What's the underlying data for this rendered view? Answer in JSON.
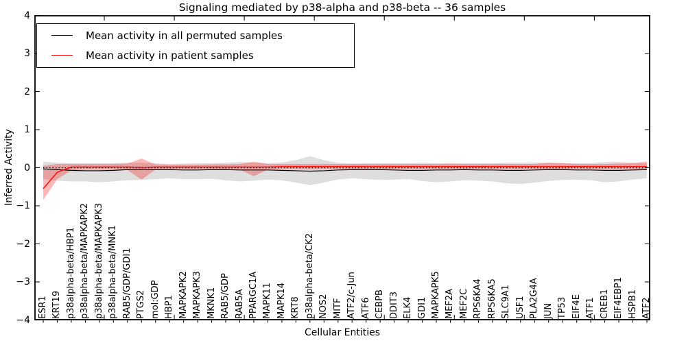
{
  "figure": {
    "title": "Signaling mediated by p38-alpha and p38-beta -- 36 samples",
    "xlabel": "Cellular Entities",
    "ylabel": "Inferred Activity"
  },
  "legend": {
    "entries": [
      {
        "label": "Mean activity in all permuted samples",
        "color": "#000000"
      },
      {
        "label": "Mean activity in patient samples",
        "color": "#ff0000"
      }
    ]
  },
  "chart_data": {
    "type": "line",
    "title": "Signaling mediated by p38-alpha and p38-beta -- 36 samples",
    "xlabel": "Cellular Entities",
    "ylabel": "Inferred Activity",
    "ylim": [
      -4,
      4
    ],
    "yticks": [
      4,
      3,
      2,
      1,
      0,
      -1,
      -2,
      -3,
      -4
    ],
    "ytick_labels": [
      "4",
      "3",
      "2",
      "1",
      "0",
      "−1",
      "−2",
      "−3",
      "−4"
    ],
    "grid": false,
    "legend_position": "upper left",
    "zero_line": {
      "y": 0,
      "style": "dotted",
      "color": "#000000"
    },
    "band_colors": {
      "permuted": "rgba(0,0,0,0.13)",
      "patient": "rgba(255,0,0,0.28)"
    },
    "categories": [
      "ESR1",
      "KRT19",
      "p38alpha-beta/HBP1",
      "p38alpha-beta/MAPKAPK2",
      "p38alpha-beta/MAPKAPK3",
      "p38alpha-beta/MNK1",
      "RAB5/GDP/GDI1",
      "PTGS2",
      "mol:GDP",
      "HBP1",
      "MAPKAPK2",
      "MAPKAPK3",
      "MKNK1",
      "RAB5/GDP",
      "RAB5A",
      "PPARGC1A",
      "MAPK11",
      "MAPK14",
      "KRT8",
      "p38alpha-beta/CK2",
      "NOS2",
      "MITF",
      "ATF2/c-Jun",
      "ATF6",
      "CEBPB",
      "DDIT3",
      "ELK4",
      "GDI1",
      "MAPKAPK5",
      "MEF2A",
      "MEF2C",
      "RPS6KA4",
      "RPS6KA5",
      "SLC9A1",
      "USF1",
      "PLA2G4A",
      "JUN",
      "TP53",
      "EIF4E",
      "ATF1",
      "CREB1",
      "EIF4EBP1",
      "HSPB1",
      "ATF2"
    ],
    "series": [
      {
        "name": "Mean activity in all permuted samples",
        "color": "#000000",
        "band": "permuted",
        "mean": [
          -0.03,
          -0.05,
          -0.07,
          -0.08,
          -0.08,
          -0.07,
          -0.05,
          -0.04,
          -0.05,
          -0.05,
          -0.06,
          -0.06,
          -0.05,
          -0.05,
          -0.06,
          -0.06,
          -0.06,
          -0.07,
          -0.08,
          -0.09,
          -0.08,
          -0.06,
          -0.05,
          -0.05,
          -0.05,
          -0.06,
          -0.07,
          -0.07,
          -0.06,
          -0.06,
          -0.05,
          -0.06,
          -0.06,
          -0.07,
          -0.07,
          -0.06,
          -0.05,
          -0.05,
          -0.06,
          -0.06,
          -0.07,
          -0.07,
          -0.06,
          -0.05
        ],
        "upper": [
          0.16,
          0.13,
          0.12,
          0.12,
          0.12,
          0.12,
          0.13,
          0.13,
          0.12,
          0.1,
          0.11,
          0.12,
          0.12,
          0.13,
          0.15,
          0.13,
          0.12,
          0.14,
          0.2,
          0.3,
          0.2,
          0.13,
          0.11,
          0.12,
          0.12,
          0.12,
          0.12,
          0.13,
          0.12,
          0.11,
          0.12,
          0.12,
          0.12,
          0.13,
          0.13,
          0.14,
          0.13,
          0.12,
          0.12,
          0.12,
          0.15,
          0.15,
          0.13,
          0.12
        ],
        "lower": [
          -0.3,
          -0.34,
          -0.36,
          -0.36,
          -0.38,
          -0.36,
          -0.33,
          -0.32,
          -0.3,
          -0.28,
          -0.3,
          -0.3,
          -0.29,
          -0.33,
          -0.36,
          -0.34,
          -0.31,
          -0.33,
          -0.39,
          -0.46,
          -0.39,
          -0.31,
          -0.28,
          -0.3,
          -0.32,
          -0.31,
          -0.3,
          -0.35,
          -0.38,
          -0.36,
          -0.33,
          -0.34,
          -0.36,
          -0.41,
          -0.43,
          -0.39,
          -0.35,
          -0.32,
          -0.31,
          -0.33,
          -0.38,
          -0.36,
          -0.31,
          -0.28
        ]
      },
      {
        "name": "Mean activity in patient samples",
        "color": "#ff0000",
        "band": "patient",
        "mean": [
          -0.55,
          -0.12,
          0.02,
          0.02,
          0.02,
          0.02,
          0.02,
          0.01,
          0.02,
          0.02,
          0.02,
          0.02,
          0.02,
          0.02,
          0.02,
          0.02,
          0.02,
          0.03,
          0.03,
          0.03,
          0.03,
          0.03,
          0.03,
          0.03,
          0.03,
          0.03,
          0.03,
          0.03,
          0.03,
          0.03,
          0.03,
          0.03,
          0.03,
          0.03,
          0.03,
          0.03,
          0.03,
          0.03,
          0.03,
          0.03,
          0.03,
          0.03,
          0.03,
          0.03
        ],
        "upper": [
          0.05,
          0.1,
          0.1,
          0.1,
          0.1,
          0.1,
          0.11,
          0.24,
          0.09,
          0.08,
          0.08,
          0.08,
          0.09,
          0.09,
          0.1,
          0.16,
          0.1,
          0.1,
          0.1,
          0.1,
          0.1,
          0.1,
          0.1,
          0.1,
          0.1,
          0.1,
          0.1,
          0.1,
          0.1,
          0.11,
          0.1,
          0.1,
          0.1,
          0.1,
          0.1,
          0.1,
          0.13,
          0.12,
          0.1,
          0.1,
          0.1,
          0.11,
          0.12,
          0.16
        ],
        "lower": [
          -0.85,
          -0.3,
          -0.07,
          -0.05,
          -0.05,
          -0.05,
          -0.06,
          -0.31,
          -0.05,
          -0.04,
          -0.04,
          -0.04,
          -0.04,
          -0.05,
          -0.05,
          -0.22,
          -0.05,
          -0.04,
          -0.04,
          -0.04,
          -0.04,
          -0.04,
          -0.04,
          -0.04,
          -0.04,
          -0.04,
          -0.04,
          -0.04,
          -0.04,
          -0.04,
          -0.04,
          -0.04,
          -0.04,
          -0.04,
          -0.04,
          -0.04,
          -0.05,
          -0.04,
          -0.04,
          -0.04,
          -0.04,
          -0.04,
          -0.05,
          -0.06
        ]
      }
    ]
  }
}
